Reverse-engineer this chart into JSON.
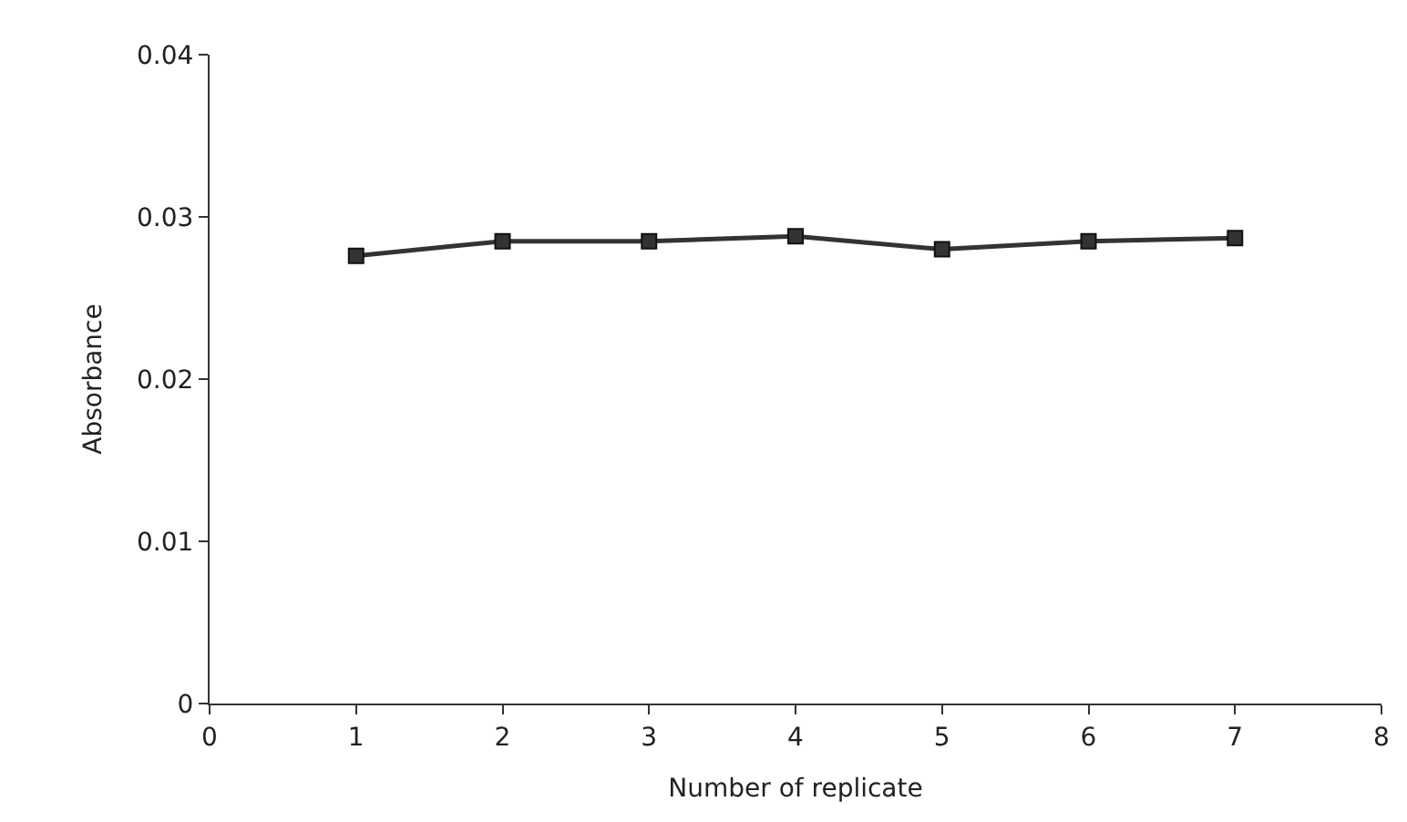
{
  "chart_data": {
    "type": "line",
    "xlabel": "Number of replicate",
    "ylabel": "Absorbance",
    "x": [
      1,
      2,
      3,
      4,
      5,
      6,
      7
    ],
    "series": [
      {
        "color": "#333333",
        "values": [
          0.0276,
          0.0285,
          0.0285,
          0.0288,
          0.028,
          0.0285,
          0.0287
        ]
      }
    ],
    "xlim": [
      0,
      8
    ],
    "xticks": [
      0,
      1,
      2,
      3,
      4,
      5,
      6,
      7,
      8
    ],
    "ylim": [
      0,
      0.04
    ],
    "yticks": [
      0,
      0.01,
      0.02,
      0.03,
      0.04
    ],
    "marker": "square",
    "line_style": "solid"
  }
}
